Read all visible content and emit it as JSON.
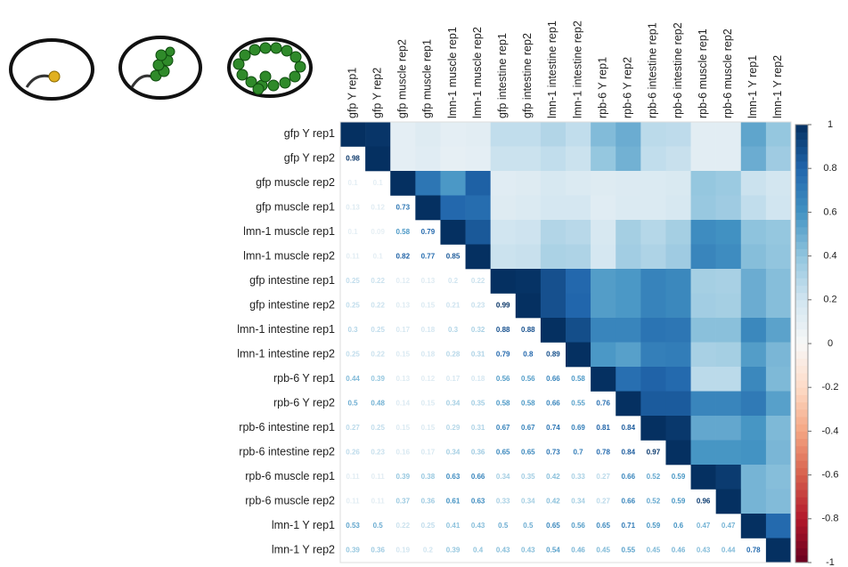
{
  "chart_data": {
    "type": "heatmap",
    "categories": [
      "gfp Y rep1",
      "gfp Y rep2",
      "gfp muscle rep2",
      "gfp muscle rep1",
      "lmn-1 muscle rep1",
      "lmn-1 muscle rep2",
      "gfp intestine rep1",
      "gfp intestine rep2",
      "lmn-1 intestine rep1",
      "lmn-1 intestine rep2",
      "rpb-6 Y rep1",
      "rpb-6 Y rep2",
      "rpb-6 intestine rep1",
      "rpb-6 intestine rep2",
      "rpb-6 muscle rep1",
      "rpb-6 muscle rep2",
      "lmn-1 Y rep1",
      "lmn-1 Y rep2"
    ],
    "values": [
      [],
      [
        0.98
      ],
      [
        0.1,
        0.1
      ],
      [
        0.13,
        0.12,
        0.73
      ],
      [
        0.1,
        0.09,
        0.58,
        0.79
      ],
      [
        0.11,
        0.1,
        0.82,
        0.77,
        0.85
      ],
      [
        0.25,
        0.22,
        0.12,
        0.13,
        0.2,
        0.22
      ],
      [
        0.25,
        0.22,
        0.13,
        0.15,
        0.21,
        0.23,
        0.99
      ],
      [
        0.3,
        0.25,
        0.17,
        0.18,
        0.3,
        0.32,
        0.88,
        0.88
      ],
      [
        0.25,
        0.22,
        0.15,
        0.18,
        0.28,
        0.31,
        0.79,
        0.8,
        0.89
      ],
      [
        0.44,
        0.39,
        0.13,
        0.12,
        0.17,
        0.18,
        0.56,
        0.56,
        0.66,
        0.58
      ],
      [
        0.5,
        0.48,
        0.14,
        0.15,
        0.34,
        0.35,
        0.58,
        0.58,
        0.66,
        0.55,
        0.76
      ],
      [
        0.27,
        0.25,
        0.15,
        0.15,
        0.29,
        0.31,
        0.67,
        0.67,
        0.74,
        0.69,
        0.81,
        0.84
      ],
      [
        0.26,
        0.23,
        0.16,
        0.17,
        0.34,
        0.36,
        0.65,
        0.65,
        0.73,
        0.7,
        0.78,
        0.84,
        0.97
      ],
      [
        0.11,
        0.11,
        0.39,
        0.38,
        0.63,
        0.66,
        0.34,
        0.35,
        0.42,
        0.33,
        0.27,
        0.66,
        0.52,
        0.59
      ],
      [
        0.11,
        0.11,
        0.37,
        0.36,
        0.61,
        0.63,
        0.33,
        0.34,
        0.42,
        0.34,
        0.27,
        0.66,
        0.52,
        0.59,
        0.96
      ],
      [
        0.53,
        0.5,
        0.22,
        0.25,
        0.41,
        0.43,
        0.5,
        0.5,
        0.65,
        0.56,
        0.65,
        0.71,
        0.59,
        0.6,
        0.47,
        0.47
      ],
      [
        0.39,
        0.36,
        0.19,
        0.2,
        0.39,
        0.4,
        0.43,
        0.43,
        0.54,
        0.46,
        0.45,
        0.55,
        0.45,
        0.46,
        0.43,
        0.44,
        0.78
      ]
    ],
    "clim": [
      -1,
      1
    ],
    "cticks": [
      1,
      0.8,
      0.6,
      0.4,
      0.2,
      0,
      -0.2,
      -0.4,
      -0.6,
      -0.8,
      -1
    ],
    "colors": [
      "#67001f",
      "#b2182b",
      "#d6604d",
      "#f4a582",
      "#fddbc7",
      "#f7f7f7",
      "#d1e5f0",
      "#92c5de",
      "#4393c3",
      "#2166ac",
      "#053061"
    ]
  }
}
